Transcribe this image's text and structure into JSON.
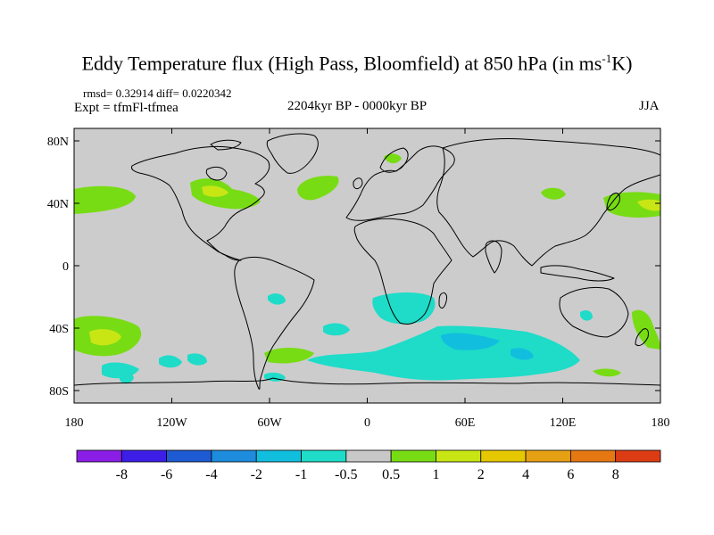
{
  "title": {
    "text_main": "Eddy Temperature flux (High Pass, Bloomfield) at 850 hPa (in ms",
    "superscript": "-1",
    "text_end": "K)"
  },
  "stats": "rmsd= 0.32914 diff= 0.0220342",
  "experiment": "Expt = tfmFl-tfmea",
  "period": "2204kyr BP - 0000kyr BP",
  "season": "JJA",
  "axes": {
    "lat_labels": [
      "80N",
      "40N",
      "0",
      "40S",
      "80S"
    ],
    "lat_values": [
      80,
      40,
      0,
      -40,
      -80
    ],
    "lon_labels": [
      "180",
      "120W",
      "60W",
      "0",
      "60E",
      "120E",
      "180"
    ],
    "lon_values": [
      -180,
      -120,
      -60,
      0,
      60,
      120,
      180
    ]
  },
  "colorbar": {
    "labels": [
      "-8",
      "-6",
      "-4",
      "-2",
      "-1",
      "-0.5",
      "0.5",
      "1",
      "2",
      "4",
      "6",
      "8"
    ],
    "colors": [
      "#8a1ee6",
      "#3c1ee6",
      "#1e5ad2",
      "#1e8cdc",
      "#12bede",
      "#1edcc8",
      "#c8c8c8",
      "#78dc14",
      "#c8e614",
      "#e6c800",
      "#e6a014",
      "#e67814",
      "#dc3c14"
    ]
  },
  "colors": {
    "ocean_land_bg": "#cccccc",
    "coast": "#000000"
  }
}
